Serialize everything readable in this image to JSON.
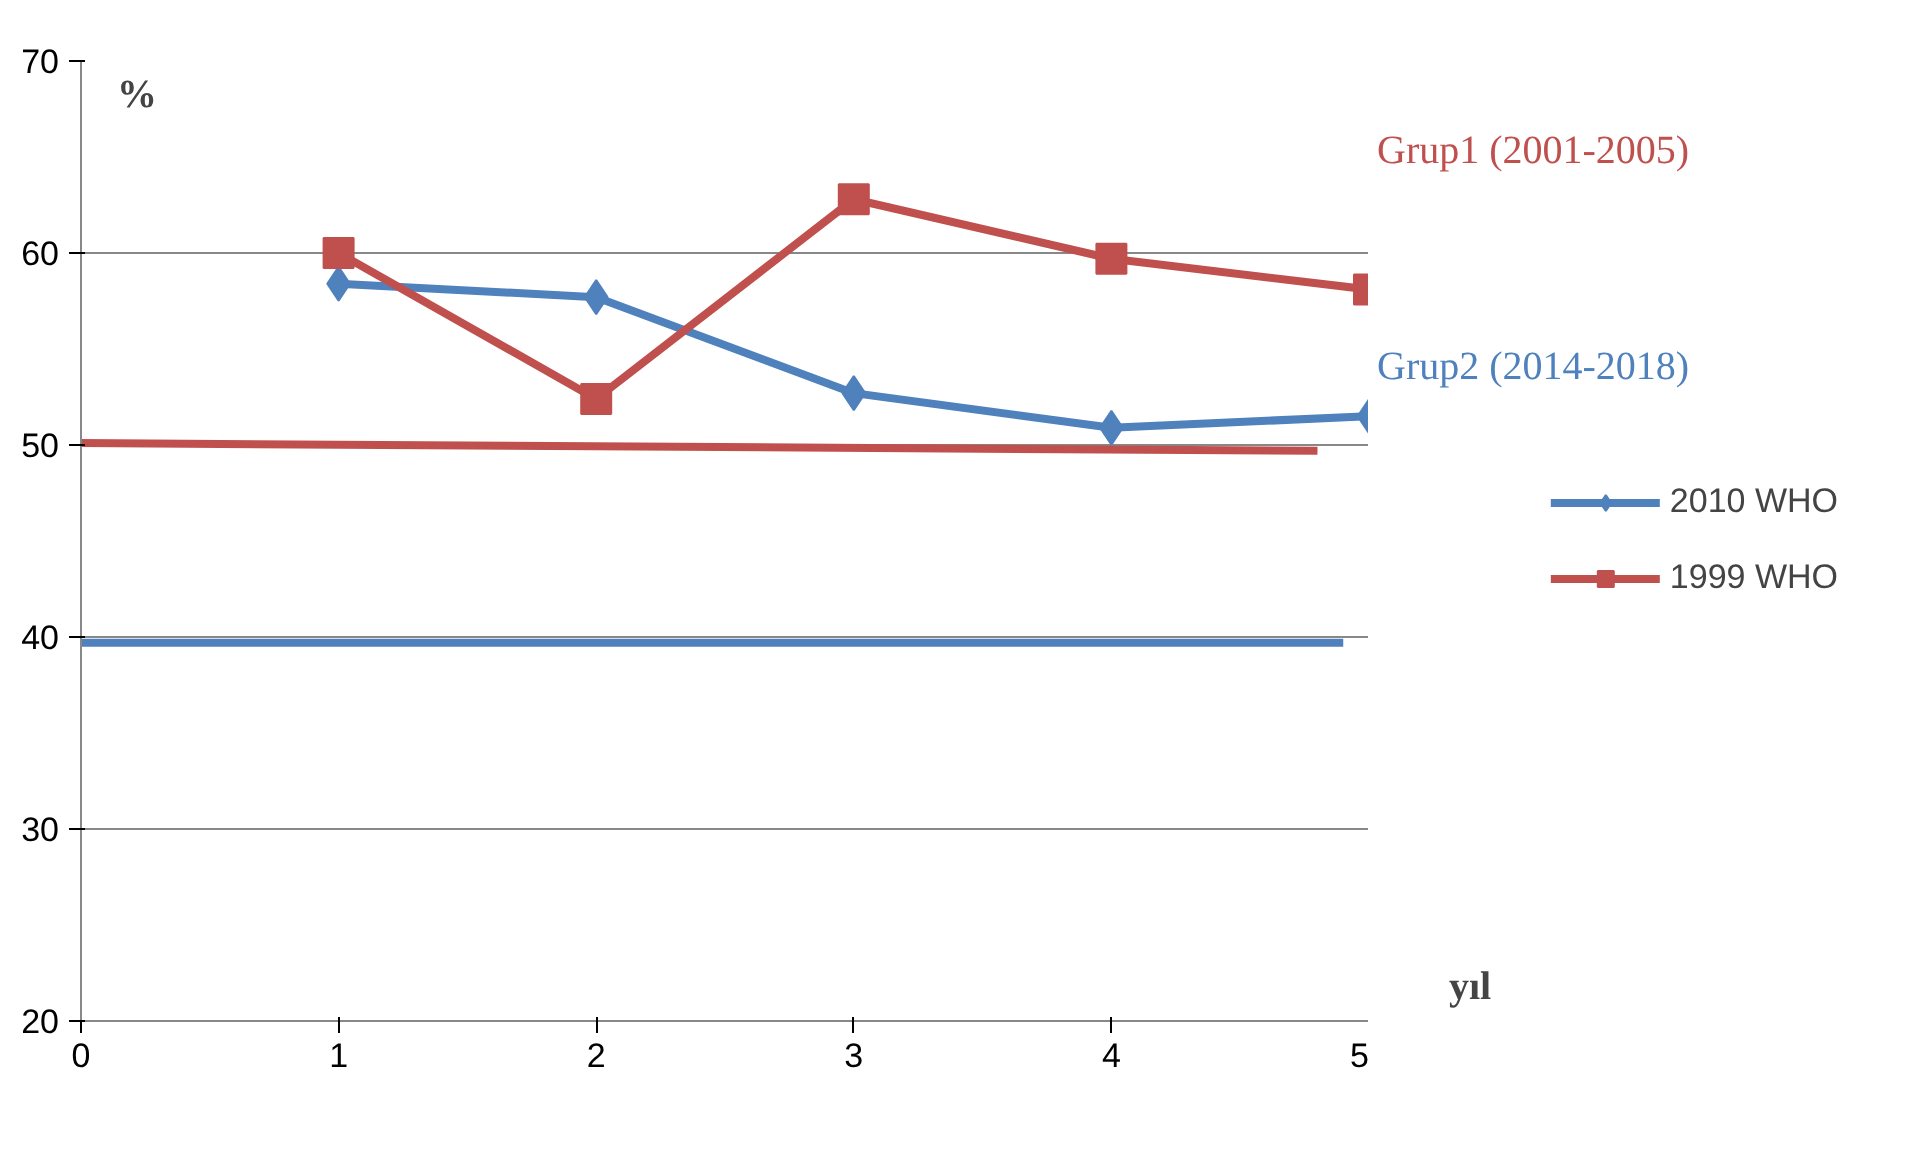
{
  "chart_data": {
    "type": "line",
    "ylabel": "%",
    "xlabel": "yıl",
    "xlim": [
      0,
      5
    ],
    "ylim": [
      20,
      70
    ],
    "xticks": [
      0,
      1,
      2,
      3,
      4,
      5
    ],
    "yticks": [
      20,
      30,
      40,
      50,
      60,
      70
    ],
    "grid": "y",
    "legend": "right",
    "line_style": "solid",
    "annotations": [
      "Grup1 (2001-2005)",
      "Grup2 (2014-2018)"
    ],
    "series": [
      {
        "name": "2010 WHO",
        "color": "#4f81bd",
        "marker": "diamond",
        "x": [
          1,
          2,
          3,
          4,
          5
        ],
        "values": [
          58.4,
          57.7,
          52.7,
          50.9,
          51.5
        ]
      },
      {
        "name": "1999 WHO",
        "color": "#c0504d",
        "marker": "square",
        "x": [
          1,
          2,
          3,
          4,
          5
        ],
        "values": [
          60.0,
          52.4,
          62.8,
          59.7,
          58.1
        ]
      },
      {
        "color": "#c0504d",
        "marker": "none",
        "x": [
          0,
          4.8
        ],
        "values": [
          50.1,
          49.7
        ]
      },
      {
        "color": "#4f81bd",
        "marker": "none",
        "x": [
          0,
          4.9
        ],
        "values": [
          39.7,
          39.7
        ]
      }
    ]
  }
}
